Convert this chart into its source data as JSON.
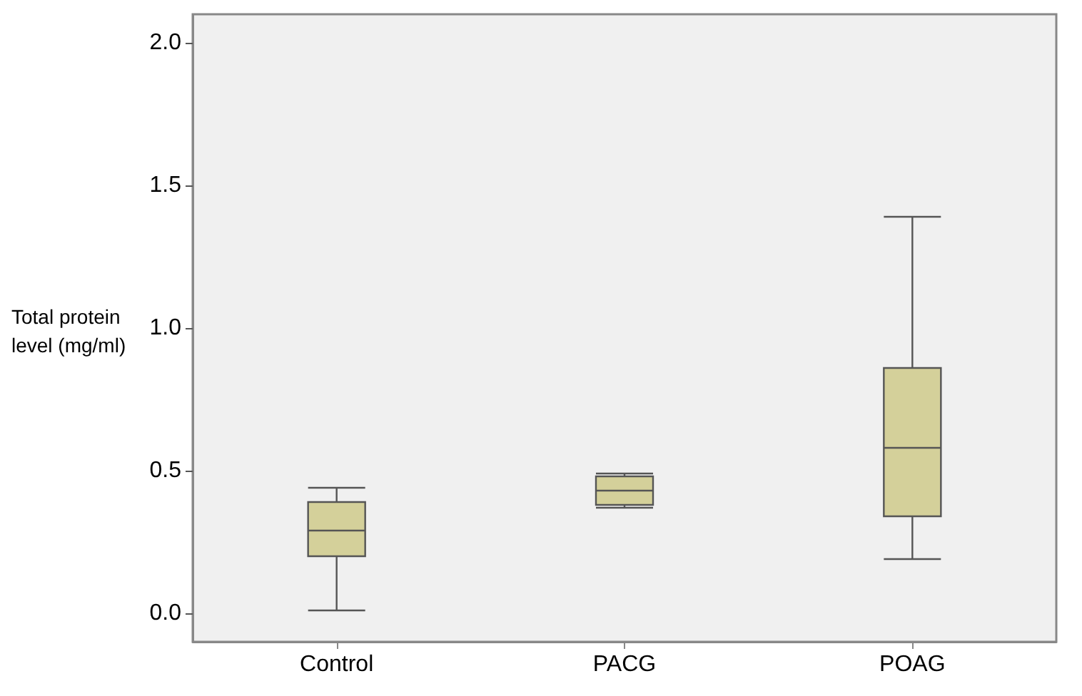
{
  "chart_data": {
    "type": "box",
    "ylabel": "Total protein level (mg/ml)",
    "categories": [
      "Control",
      "PACG",
      "POAG"
    ],
    "color": "#d4d09a",
    "boxes": [
      {
        "low": 0.01,
        "q1": 0.2,
        "median": 0.29,
        "q3": 0.39,
        "high": 0.44
      },
      {
        "low": 0.37,
        "q1": 0.38,
        "median": 0.43,
        "q3": 0.48,
        "high": 0.49
      },
      {
        "low": 0.19,
        "q1": 0.34,
        "median": 0.58,
        "q3": 0.86,
        "high": 1.39
      }
    ],
    "ylim": [
      -0.1,
      2.1
    ],
    "yticks": [
      {
        "value": 0,
        "label": "0.0"
      },
      0.5,
      {
        "value": 1,
        "label": "1.0"
      },
      1.5,
      {
        "value": 2,
        "label": "2.0"
      }
    ]
  }
}
